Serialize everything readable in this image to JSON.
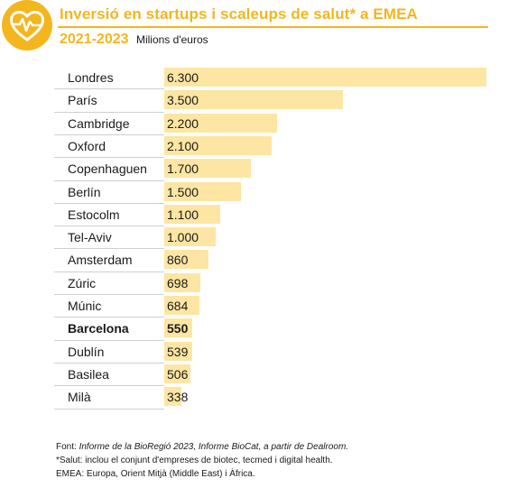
{
  "header": {
    "icon": "heart-pulse-icon",
    "title": "Inversió en startups i scaleups de salut* a EMEA",
    "years": "2021-2023",
    "unit": "Milions d'euros"
  },
  "colors": {
    "accent": "#f3b61f",
    "bar": "#fde6a3",
    "rule": "#cfcfcf"
  },
  "chart_data": {
    "type": "bar",
    "orientation": "horizontal",
    "title": "Inversió en startups i scaleups de salut* a EMEA",
    "subtitle": "2021-2023 Milions d'euros",
    "xlim": [
      0,
      6300
    ],
    "highlight": "Barcelona",
    "categories": [
      "Londres",
      "París",
      "Cambridge",
      "Oxford",
      "Copenhaguen",
      "Berlín",
      "Estocolm",
      "Tel-Aviv",
      "Amsterdam",
      "Zúric",
      "Múnic",
      "Barcelona",
      "Dublín",
      "Basilea",
      "Milà"
    ],
    "values": [
      6300,
      3500,
      2200,
      2100,
      1700,
      1500,
      1100,
      1000,
      860,
      698,
      684,
      550,
      539,
      506,
      338
    ],
    "value_labels": [
      "6.300",
      "3.500",
      "2.200",
      "2.100",
      "1.700",
      "1.500",
      "1.100",
      "1.000",
      "860",
      "698",
      "684",
      "550",
      "539",
      "506",
      "338"
    ]
  },
  "notes": {
    "source_prefix": "Font: ",
    "source_italic": "Informe de la BioRegió 2023, Informe BioCat, a partir de Dealroom.",
    "health": "*Salut: inclou el conjunt d'empreses de biotec, tecmed i digital health.",
    "emea": "EMEA: Europa, Orient Mitjà (Middle East) i Àfrica."
  }
}
